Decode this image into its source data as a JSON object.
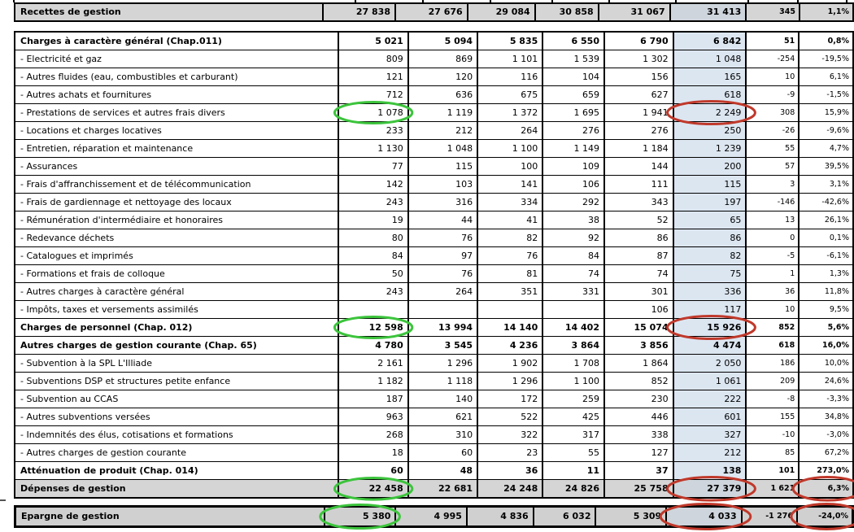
{
  "table": {
    "recettes_row": {
      "label": "Recettes de gestion",
      "values": [
        "27 838",
        "27 676",
        "29 084",
        "30 858",
        "31 067",
        "31 413",
        "345",
        "1,1%"
      ],
      "style": "bold-grey"
    },
    "main_rows": [
      {
        "label": "Charges à caractère général (Chap.011)",
        "values": [
          "5 021",
          "5 094",
          "5 835",
          "6 550",
          "6 790",
          "6 842",
          "51",
          "0,8%"
        ],
        "style": "bold"
      },
      {
        "label": "- Electricité et gaz",
        "values": [
          "809",
          "869",
          "1 101",
          "1 539",
          "1 302",
          "1 048",
          "-254",
          "-19,5%"
        ],
        "style": "detail"
      },
      {
        "label": "- Autres fluides (eau, combustibles et carburant)",
        "values": [
          "121",
          "120",
          "116",
          "104",
          "156",
          "165",
          "10",
          "6,1%"
        ],
        "style": "detail"
      },
      {
        "label": "- Autres achats et fournitures",
        "values": [
          "712",
          "636",
          "675",
          "659",
          "627",
          "618",
          "-9",
          "-1,5%"
        ],
        "style": "detail"
      },
      {
        "label": "- Prestations de services et autres frais divers",
        "values": [
          "1 078",
          "1 119",
          "1 372",
          "1 695",
          "1 941",
          "2 249",
          "308",
          "15,9%"
        ],
        "style": "detail"
      },
      {
        "label": "- Locations et charges locatives",
        "values": [
          "233",
          "212",
          "264",
          "276",
          "276",
          "250",
          "-26",
          "-9,6%"
        ],
        "style": "detail"
      },
      {
        "label": "- Entretien, réparation et maintenance",
        "values": [
          "1 130",
          "1 048",
          "1 100",
          "1 149",
          "1 184",
          "1 239",
          "55",
          "4,7%"
        ],
        "style": "detail"
      },
      {
        "label": "- Assurances",
        "values": [
          "77",
          "115",
          "100",
          "109",
          "144",
          "200",
          "57",
          "39,5%"
        ],
        "style": "detail"
      },
      {
        "label": "- Frais d'affranchissement et de télécommunication",
        "values": [
          "142",
          "103",
          "141",
          "106",
          "111",
          "115",
          "3",
          "3,1%"
        ],
        "style": "detail"
      },
      {
        "label": "- Frais de gardiennage et nettoyage des locaux",
        "values": [
          "243",
          "316",
          "334",
          "292",
          "343",
          "197",
          "-146",
          "-42,6%"
        ],
        "style": "detail"
      },
      {
        "label": "- Rémunération d'intermédiaire et honoraires",
        "values": [
          "19",
          "44",
          "41",
          "38",
          "52",
          "65",
          "13",
          "26,1%"
        ],
        "style": "detail"
      },
      {
        "label": "- Redevance déchets",
        "values": [
          "80",
          "76",
          "82",
          "92",
          "86",
          "86",
          "0",
          "0,1%"
        ],
        "style": "detail"
      },
      {
        "label": "- Catalogues et imprimés",
        "values": [
          "84",
          "97",
          "76",
          "84",
          "87",
          "82",
          "-5",
          "-6,1%"
        ],
        "style": "detail"
      },
      {
        "label": "- Formations et frais de colloque",
        "values": [
          "50",
          "76",
          "81",
          "74",
          "74",
          "75",
          "1",
          "1,3%"
        ],
        "style": "detail"
      },
      {
        "label": "- Autres charges à caractère général",
        "values": [
          "243",
          "264",
          "351",
          "331",
          "301",
          "336",
          "36",
          "11,8%"
        ],
        "style": "detail"
      },
      {
        "label": "- Impôts, taxes et versements assimilés",
        "values": [
          "",
          "",
          "",
          "",
          "106",
          "117",
          "10",
          "9,5%"
        ],
        "style": "detail"
      },
      {
        "label": "Charges de personnel (Chap. 012)",
        "values": [
          "12 598",
          "13 994",
          "14 140",
          "14 402",
          "15 074",
          "15 926",
          "852",
          "5,6%"
        ],
        "style": "bold"
      },
      {
        "label": "Autres charges de gestion courante (Chap. 65)",
        "values": [
          "4 780",
          "3 545",
          "4 236",
          "3 864",
          "3 856",
          "4 474",
          "618",
          "16,0%"
        ],
        "style": "bold"
      },
      {
        "label": "- Subvention à la SPL L'Illiade",
        "values": [
          "2 161",
          "1 296",
          "1 902",
          "1 708",
          "1 864",
          "2 050",
          "186",
          "10,0%"
        ],
        "style": "detail"
      },
      {
        "label": "- Subventions DSP et structures petite enfance",
        "values": [
          "1 182",
          "1 118",
          "1 296",
          "1 100",
          "852",
          "1 061",
          "209",
          "24,6%"
        ],
        "style": "detail"
      },
      {
        "label": "- Subvention au CCAS",
        "values": [
          "187",
          "140",
          "172",
          "259",
          "230",
          "222",
          "-8",
          "-3,3%"
        ],
        "style": "detail"
      },
      {
        "label": "- Autres subventions versées",
        "values": [
          "963",
          "621",
          "522",
          "425",
          "446",
          "601",
          "155",
          "34,8%"
        ],
        "style": "detail"
      },
      {
        "label": "- Indemnités des élus, cotisations et formations",
        "values": [
          "268",
          "310",
          "322",
          "317",
          "338",
          "327",
          "-10",
          "-3,0%"
        ],
        "style": "detail"
      },
      {
        "label": "- Autres charges de gestion courante",
        "values": [
          "18",
          "60",
          "23",
          "55",
          "127",
          "212",
          "85",
          "67,2%"
        ],
        "style": "detail"
      },
      {
        "label": "Atténuation de produit (Chap. 014)",
        "values": [
          "60",
          "48",
          "36",
          "11",
          "37",
          "138",
          "101",
          "273,0%"
        ],
        "style": "bold"
      },
      {
        "label": "Dépenses de gestion",
        "values": [
          "22 458",
          "22 681",
          "24 248",
          "24 826",
          "25 758",
          "27 379",
          "1 621",
          "6,3%"
        ],
        "style": "bold-grey"
      }
    ],
    "epargne_row": {
      "label": "Epargne de gestion",
      "values": [
        "5 380",
        "4 995",
        "4 836",
        "6 032",
        "5 309",
        "4 033",
        "-1 276",
        "-24,0%"
      ],
      "style": "bold-grey"
    }
  },
  "annotations": [
    {
      "section": "main",
      "row": 4,
      "col": 1,
      "color": "green"
    },
    {
      "section": "main",
      "row": 4,
      "col": 6,
      "color": "red"
    },
    {
      "section": "main",
      "row": 16,
      "col": 1,
      "color": "green"
    },
    {
      "section": "main",
      "row": 16,
      "col": 6,
      "color": "red"
    },
    {
      "section": "main",
      "row": 25,
      "col": 1,
      "color": "green"
    },
    {
      "section": "main",
      "row": 25,
      "col": 6,
      "color": "red"
    },
    {
      "section": "main",
      "row": 25,
      "col": 8,
      "color": "red"
    },
    {
      "section": "epargne",
      "row": 0,
      "col": 1,
      "color": "green"
    },
    {
      "section": "epargne",
      "row": 0,
      "col": 6,
      "color": "red"
    },
    {
      "section": "epargne",
      "row": 0,
      "col": 8,
      "color": "red"
    }
  ],
  "colors": {
    "annotation_green": "#3cc43c",
    "annotation_red": "#c0392b",
    "grey_row": "#d5d5d5",
    "epargne_grey": "#d0d0d0",
    "blue_column": "#dce6f1",
    "blue_grey_intersection": "#ced5dc",
    "border_black": "#000000"
  }
}
